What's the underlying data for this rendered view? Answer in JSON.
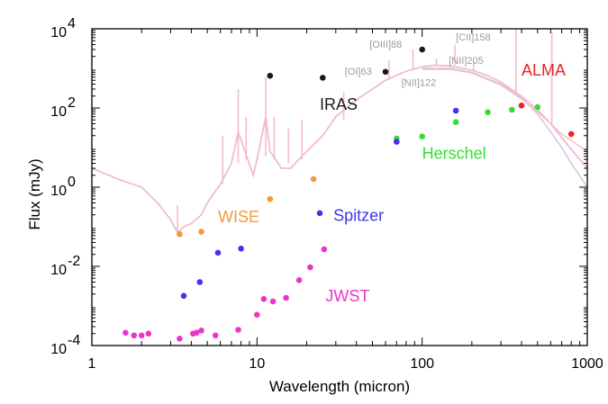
{
  "chart_data": {
    "type": "scatter",
    "title": "",
    "xlabel": "Wavelength (micron)",
    "ylabel": "Flux (mJy)",
    "xscale": "log",
    "yscale": "log",
    "xlim": [
      1,
      1000
    ],
    "ylim": [
      0.0001,
      10000
    ],
    "x_ticks": [
      {
        "value": 1,
        "label": "1"
      },
      {
        "value": 10,
        "label": "10"
      },
      {
        "value": 100,
        "label": "100"
      },
      {
        "value": 1000,
        "label": "1000"
      }
    ],
    "y_ticks": [
      {
        "value": 0.0001,
        "base": "10",
        "exp": "-4"
      },
      {
        "value": 0.01,
        "base": "10",
        "exp": "-2"
      },
      {
        "value": 1,
        "base": "10",
        "exp": "0"
      },
      {
        "value": 100,
        "base": "10",
        "exp": "2"
      },
      {
        "value": 10000,
        "base": "10",
        "exp": "4"
      }
    ],
    "series": [
      {
        "name": "IRAS",
        "color": "#1a1a1a",
        "label_x": 24,
        "label_y": 90,
        "points": [
          [
            12,
            650
          ],
          [
            25,
            580
          ],
          [
            60,
            820
          ],
          [
            100,
            3000
          ]
        ]
      },
      {
        "name": "ALMA",
        "color": "#ee2222",
        "label_x": 400,
        "label_y": 650,
        "points": [
          [
            400,
            115
          ],
          [
            800,
            22
          ]
        ]
      },
      {
        "name": "Herschel",
        "color": "#33dd33",
        "label_x": 100,
        "label_y": 5.2,
        "points": [
          [
            70,
            17
          ],
          [
            100,
            19
          ],
          [
            160,
            44
          ],
          [
            250,
            78
          ],
          [
            350,
            90
          ],
          [
            500,
            105
          ]
        ]
      },
      {
        "name": "WISE",
        "color": "#f39a3c",
        "label_x": 5.8,
        "label_y": 0.13,
        "points": [
          [
            3.4,
            0.065
          ],
          [
            4.6,
            0.075
          ],
          [
            12,
            0.5
          ],
          [
            22,
            1.6
          ]
        ]
      },
      {
        "name": "Spitzer",
        "color": "#4433ee",
        "label_x": 29,
        "label_y": 0.14,
        "points": [
          [
            3.6,
            0.0018
          ],
          [
            4.5,
            0.004
          ],
          [
            5.8,
            0.022
          ],
          [
            8,
            0.028
          ],
          [
            24,
            0.22
          ],
          [
            70,
            14
          ],
          [
            160,
            85
          ]
        ]
      },
      {
        "name": "JWST",
        "color": "#ee33cc",
        "label_x": 26,
        "label_y": 0.0013,
        "points": [
          [
            1.6,
            0.00021
          ],
          [
            1.8,
            0.00018
          ],
          [
            2.0,
            0.00018
          ],
          [
            2.2,
            0.0002
          ],
          [
            3.4,
            0.00015
          ],
          [
            4.1,
            0.0002
          ],
          [
            4.3,
            0.00021
          ],
          [
            4.6,
            0.00024
          ],
          [
            5.6,
            0.00018
          ],
          [
            7.7,
            0.00025
          ],
          [
            10,
            0.0006
          ],
          [
            11,
            0.0015
          ],
          [
            12.5,
            0.0013
          ],
          [
            15,
            0.0016
          ],
          [
            18,
            0.0045
          ],
          [
            21,
            0.0095
          ],
          [
            25.5,
            0.027
          ]
        ]
      }
    ],
    "line_labels": [
      {
        "text": "[OIII]88",
        "x": 48,
        "y": 3300
      },
      {
        "text": "[OI]63",
        "x": 34,
        "y": 700
      },
      {
        "text": "[CII]158",
        "x": 160,
        "y": 5000
      },
      {
        "text": "[NII]122",
        "x": 75,
        "y": 360
      },
      {
        "text": "[NII]205",
        "x": 145,
        "y": 1300
      }
    ],
    "sed_models": {
      "main_color": "#f2bcc9",
      "alt_color": "#c9c3ea",
      "main": [
        [
          1,
          3
        ],
        [
          1.5,
          1.5
        ],
        [
          2,
          1.0
        ],
        [
          2.5,
          0.4
        ],
        [
          3,
          0.15
        ],
        [
          3.3,
          0.07
        ],
        [
          3.6,
          0.1
        ],
        [
          4,
          0.12
        ],
        [
          4.6,
          0.2
        ],
        [
          5,
          0.4
        ],
        [
          6,
          1.2
        ],
        [
          7,
          4
        ],
        [
          7.7,
          25
        ],
        [
          8.3,
          10
        ],
        [
          9.5,
          2
        ],
        [
          10,
          5
        ],
        [
          11.3,
          60
        ],
        [
          12,
          8
        ],
        [
          13,
          5
        ],
        [
          14,
          3
        ],
        [
          16,
          3
        ],
        [
          17,
          4
        ],
        [
          20,
          8
        ],
        [
          25,
          20
        ],
        [
          30,
          60
        ],
        [
          40,
          160
        ],
        [
          50,
          300
        ],
        [
          60,
          500
        ],
        [
          80,
          850
        ],
        [
          100,
          1100
        ],
        [
          120,
          1200
        ],
        [
          150,
          1150
        ],
        [
          200,
          900
        ],
        [
          250,
          650
        ],
        [
          300,
          450
        ],
        [
          400,
          200
        ],
        [
          500,
          90
        ],
        [
          600,
          40
        ],
        [
          700,
          18
        ],
        [
          800,
          9
        ],
        [
          1000,
          3
        ]
      ],
      "alt1": [
        [
          100,
          1000
        ],
        [
          150,
          1000
        ],
        [
          200,
          800
        ],
        [
          300,
          400
        ],
        [
          400,
          180
        ],
        [
          500,
          70
        ],
        [
          600,
          25
        ],
        [
          700,
          10
        ],
        [
          800,
          4
        ],
        [
          1000,
          1
        ]
      ],
      "alt2": [
        [
          100,
          950
        ],
        [
          150,
          950
        ],
        [
          200,
          760
        ],
        [
          300,
          380
        ],
        [
          400,
          170
        ],
        [
          500,
          80
        ],
        [
          600,
          40
        ],
        [
          700,
          22
        ],
        [
          800,
          15
        ],
        [
          1000,
          8
        ]
      ],
      "spikes": [
        [
          3.3,
          0.06,
          0.35
        ],
        [
          6.2,
          1.2,
          20
        ],
        [
          7.7,
          4,
          300
        ],
        [
          8.6,
          5,
          60
        ],
        [
          11.3,
          6,
          600
        ],
        [
          12.7,
          5,
          60
        ],
        [
          15.5,
          4,
          30
        ],
        [
          18.7,
          5,
          50
        ],
        [
          33.5,
          50,
          250
        ],
        [
          63,
          500,
          1600
        ],
        [
          88,
          900,
          3000
        ],
        [
          122,
          1200,
          1800
        ],
        [
          158,
          1200,
          4000
        ],
        [
          205,
          850,
          1500
        ],
        [
          370,
          250,
          200000
        ],
        [
          610,
          40,
          8000
        ]
      ]
    }
  }
}
